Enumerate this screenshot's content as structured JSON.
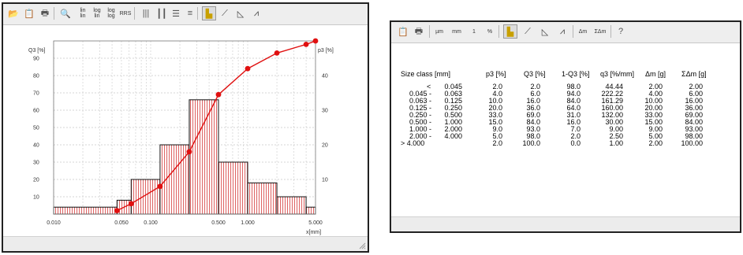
{
  "left_window": {
    "toolbar": {
      "buttons": [
        {
          "name": "open-icon",
          "glyph": "📂"
        },
        {
          "name": "copy-icon",
          "glyph": "📋"
        },
        {
          "name": "print-icon",
          "glyph": "🖶"
        },
        {
          "name": "zoom-icon",
          "glyph": "🔍"
        },
        {
          "name": "lin-lin-icon",
          "text": "lin\nlin"
        },
        {
          "name": "log-lin-icon",
          "text": "log\nlin"
        },
        {
          "name": "log-log-icon",
          "text": "log\nlog"
        },
        {
          "name": "rrs-icon",
          "text": "RRS"
        },
        {
          "name": "vertical-lines-icon",
          "glyph": "|||"
        },
        {
          "name": "vertical-lines-alt-icon",
          "glyph": "┃┃"
        },
        {
          "name": "horizontal-lines-icon",
          "glyph": "☰"
        },
        {
          "name": "horizontal-lines-alt-icon",
          "glyph": "≡"
        },
        {
          "name": "histogram-bars-icon",
          "glyph": "▙"
        },
        {
          "name": "cumulative-curve-icon",
          "glyph": "⟋"
        },
        {
          "name": "density-curve-icon",
          "glyph": "◺"
        },
        {
          "name": "mountain-curve-icon",
          "glyph": "⩘"
        }
      ]
    }
  },
  "chart_data": {
    "type": "bar",
    "x_scale": "log",
    "xlabel": "x[mm]",
    "ylabel_left": "Q3 [%]",
    "ylabel_right": "p3 [%]",
    "xlim": [
      0.01,
      5.0
    ],
    "ylim_left": [
      0,
      100
    ],
    "ylim_right": [
      0,
      50
    ],
    "x_ticks": [
      {
        "value": 0.01,
        "label": "0.010"
      },
      {
        "value": 0.05,
        "label": "0.050"
      },
      {
        "value": 0.1,
        "label": "0.100"
      },
      {
        "value": 0.5,
        "label": "0.500"
      },
      {
        "value": 1.0,
        "label": "1.000"
      },
      {
        "value": 5.0,
        "label": "5.000"
      }
    ],
    "y_ticks_left": [
      10,
      20,
      30,
      40,
      50,
      60,
      70,
      80,
      90
    ],
    "y_ticks_right": [
      10,
      20,
      30,
      40
    ],
    "histogram_p3": [
      {
        "from": 0.01,
        "to": 0.045,
        "value": 2.0
      },
      {
        "from": 0.045,
        "to": 0.063,
        "value": 4.0
      },
      {
        "from": 0.063,
        "to": 0.125,
        "value": 10.0
      },
      {
        "from": 0.125,
        "to": 0.25,
        "value": 20.0
      },
      {
        "from": 0.25,
        "to": 0.5,
        "value": 33.0
      },
      {
        "from": 0.5,
        "to": 1.0,
        "value": 15.0
      },
      {
        "from": 1.0,
        "to": 2.0,
        "value": 9.0
      },
      {
        "from": 2.0,
        "to": 4.0,
        "value": 5.0
      },
      {
        "from": 4.0,
        "to": 5.0,
        "value": 2.0
      }
    ],
    "cumulative_Q3": {
      "x": [
        0.045,
        0.063,
        0.125,
        0.25,
        0.5,
        1.0,
        2.0,
        4.0,
        5.0
      ],
      "y": [
        2.0,
        6.0,
        16.0,
        36.0,
        69.0,
        84.0,
        93.0,
        98.0,
        100.0
      ]
    },
    "colors": {
      "bar_fill": "#f3c6c6",
      "bar_hatch": "#d84a4a",
      "curve": "#e01010",
      "grid": "#c9c9c9"
    }
  },
  "right_window": {
    "toolbar": {
      "buttons": [
        {
          "name": "copy-icon",
          "glyph": "📋"
        },
        {
          "name": "print-icon",
          "glyph": "🖶"
        },
        {
          "name": "unit-um-button",
          "text": "µm"
        },
        {
          "name": "unit-mm-button",
          "text": "mm"
        },
        {
          "name": "factor-1-button",
          "text": "1"
        },
        {
          "name": "percent-button",
          "text": "%"
        },
        {
          "name": "histogram-bars-icon",
          "glyph": "▙"
        },
        {
          "name": "cumulative-curve-icon",
          "glyph": "⟋"
        },
        {
          "name": "density-curve-icon",
          "glyph": "◺"
        },
        {
          "name": "mountain-curve-icon",
          "glyph": "⩘"
        },
        {
          "name": "delta-m-button",
          "text": "Δm"
        },
        {
          "name": "sum-delta-m-button",
          "text": "ΣΔm"
        },
        {
          "name": "help-icon",
          "glyph": "?"
        }
      ]
    },
    "table": {
      "headers": [
        "Size class [mm]",
        "p3 [%]",
        "Q3 [%]",
        "1-Q3 [%]",
        "q3 [%/mm]",
        "Δm [g]",
        "ΣΔm [g]"
      ],
      "rows": [
        {
          "from": "<",
          "to": "0.045",
          "p3": "2.0",
          "Q3": "2.0",
          "oneMinusQ3": "98.0",
          "q3": "44.44",
          "dm": "2.00",
          "sdm": "2.00"
        },
        {
          "from": "0.045 -",
          "to": "0.063",
          "p3": "4.0",
          "Q3": "6.0",
          "oneMinusQ3": "94.0",
          "q3": "222.22",
          "dm": "4.00",
          "sdm": "6.00"
        },
        {
          "from": "0.063 -",
          "to": "0.125",
          "p3": "10.0",
          "Q3": "16.0",
          "oneMinusQ3": "84.0",
          "q3": "161.29",
          "dm": "10.00",
          "sdm": "16.00"
        },
        {
          "from": "0.125 -",
          "to": "0.250",
          "p3": "20.0",
          "Q3": "36.0",
          "oneMinusQ3": "64.0",
          "q3": "160.00",
          "dm": "20.00",
          "sdm": "36.00"
        },
        {
          "from": "0.250 -",
          "to": "0.500",
          "p3": "33.0",
          "Q3": "69.0",
          "oneMinusQ3": "31.0",
          "q3": "132.00",
          "dm": "33.00",
          "sdm": "69.00"
        },
        {
          "from": "0.500 -",
          "to": "1.000",
          "p3": "15.0",
          "Q3": "84.0",
          "oneMinusQ3": "16.0",
          "q3": "30.00",
          "dm": "15.00",
          "sdm": "84.00"
        },
        {
          "from": "1.000 -",
          "to": "2.000",
          "p3": "9.0",
          "Q3": "93.0",
          "oneMinusQ3": "7.0",
          "q3": "9.00",
          "dm": "9.00",
          "sdm": "93.00"
        },
        {
          "from": "2.000 -",
          "to": "4.000",
          "p3": "5.0",
          "Q3": "98.0",
          "oneMinusQ3": "2.0",
          "q3": "2.50",
          "dm": "5.00",
          "sdm": "98.00"
        },
        {
          "from": "> 4.000",
          "to": "",
          "p3": "2.0",
          "Q3": "100.0",
          "oneMinusQ3": "0.0",
          "q3": "1.00",
          "dm": "2.00",
          "sdm": "100.00"
        }
      ]
    }
  }
}
